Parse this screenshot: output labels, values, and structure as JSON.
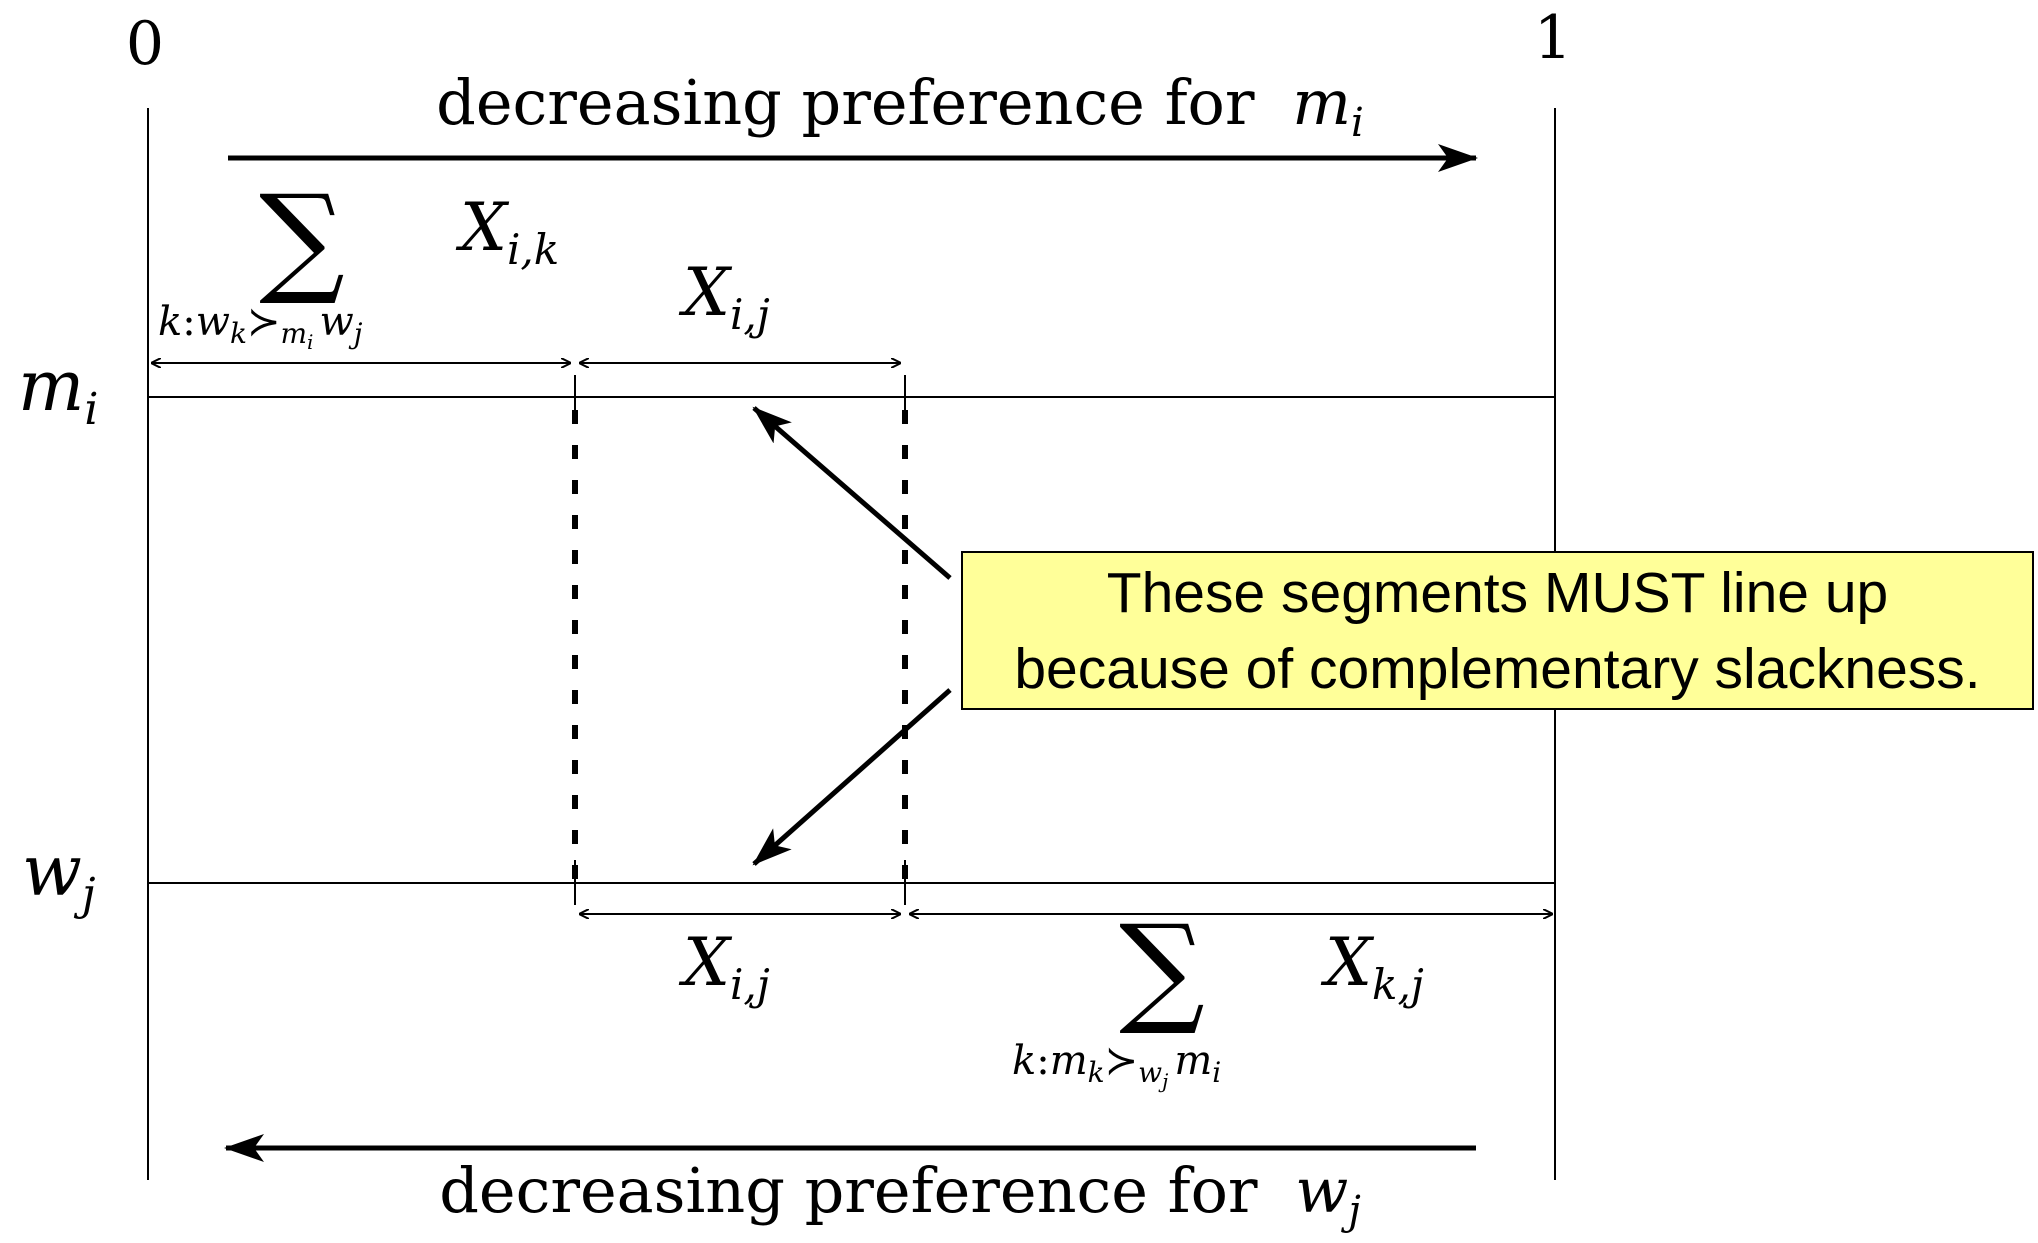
{
  "axis_labels": {
    "left": "0",
    "right": "1"
  },
  "top_caption": {
    "text": "decreasing preference for",
    "var": "m",
    "sub": "i"
  },
  "bottom_caption": {
    "text": "decreasing preference for",
    "var": "w",
    "sub": "j"
  },
  "rows": {
    "top": {
      "var": "m",
      "sub": "i"
    },
    "bottom": {
      "var": "w",
      "sub": "j"
    }
  },
  "top_sum": {
    "symbol": "∑",
    "index": {
      "k": "k",
      "colon": ":",
      "w": "w",
      "k_sub": "k",
      "rel": "≻",
      "m": "m",
      "m_sub": "i",
      "w2": "w",
      "w2_sub": "j"
    },
    "term": {
      "var": "X",
      "sub": "i,k"
    }
  },
  "top_xij": {
    "var": "X",
    "sub": "i,j"
  },
  "bottom_xij": {
    "var": "X",
    "sub": "i,j"
  },
  "bottom_sum": {
    "symbol": "∑",
    "index": {
      "k": "k",
      "colon": ":",
      "m": "m",
      "k_sub": "k",
      "rel": "≻",
      "w": "w",
      "w_sub": "j",
      "m2": "m",
      "m2_sub": "i"
    },
    "term": {
      "var": "X",
      "sub": "k,j"
    }
  },
  "callout": {
    "line1": "These segments MUST line up",
    "line2": "because of complementary slackness.",
    "fill": "#ffff99"
  }
}
